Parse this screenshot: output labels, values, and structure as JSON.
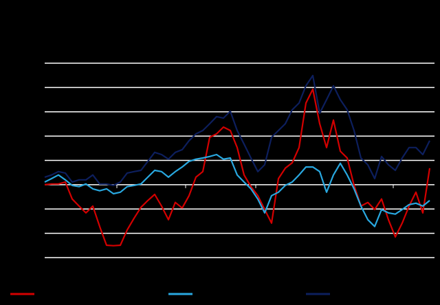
{
  "chart_data": {
    "type": "line",
    "x": [
      0,
      10,
      20,
      30,
      40,
      50,
      60,
      70,
      80,
      90,
      100,
      110,
      120,
      130,
      140,
      150,
      160,
      170,
      180,
      190,
      200,
      210,
      220,
      230,
      240,
      250,
      260,
      270,
      280,
      290,
      300,
      310,
      320,
      330,
      340,
      350,
      360,
      370,
      380,
      390,
      400,
      410,
      420,
      430,
      440,
      450,
      460,
      470,
      480,
      490,
      500,
      510,
      520,
      530,
      540,
      550,
      560
    ],
    "series": [
      {
        "color": "#d40000",
        "values": [
          0,
          0.03,
          0.03,
          0.11,
          -0.59,
          -0.88,
          -1.16,
          -0.88,
          -1.72,
          -2.49,
          -2.51,
          -2.49,
          -1.86,
          -1.38,
          -0.93,
          -0.65,
          -0.4,
          -0.88,
          -1.44,
          -0.73,
          -0.96,
          -0.45,
          0.31,
          0.54,
          1.95,
          2.09,
          2.37,
          2.23,
          1.53,
          0.4,
          -0.08,
          -0.45,
          -1.02,
          -1.58,
          0.25,
          0.68,
          0.9,
          1.53,
          3.36,
          3.93,
          2.51,
          1.53,
          2.66,
          1.38,
          1.1,
          -0.03,
          -0.88,
          -0.73,
          -1.02,
          -0.59,
          -1.44,
          -2.15,
          -1.58,
          -0.88,
          -0.31,
          -1.16,
          0.68
        ]
      },
      {
        "color": "#29a8e0",
        "values": [
          0.11,
          0.25,
          0.4,
          0.2,
          -0.03,
          -0.08,
          0.03,
          -0.17,
          -0.25,
          -0.17,
          -0.37,
          -0.31,
          -0.08,
          -0.03,
          0.03,
          0.31,
          0.59,
          0.54,
          0.31,
          0.54,
          0.73,
          0.96,
          1.05,
          1.1,
          1.16,
          1.24,
          1.05,
          1.1,
          0.4,
          0.11,
          -0.17,
          -0.59,
          -1.16,
          -0.45,
          -0.31,
          -0.03,
          0.11,
          0.4,
          0.73,
          0.73,
          0.54,
          -0.31,
          0.4,
          0.88,
          0.4,
          -0.17,
          -0.88,
          -1.44,
          -1.72,
          -1.02,
          -1.16,
          -1.21,
          -1.02,
          -0.82,
          -0.76,
          -0.88,
          -0.65
        ]
      },
      {
        "color": "#0d1f5e",
        "values": [
          0.31,
          0.4,
          0.54,
          0.48,
          0.11,
          0.2,
          0.2,
          0.4,
          0.03,
          0.03,
          -0.03,
          0.11,
          0.48,
          0.54,
          0.59,
          0.96,
          1.33,
          1.24,
          1.05,
          1.33,
          1.44,
          1.81,
          2.09,
          2.23,
          2.51,
          2.8,
          2.74,
          3.02,
          2.23,
          1.67,
          1.1,
          0.54,
          0.82,
          1.95,
          2.23,
          2.51,
          3.08,
          3.36,
          4.07,
          4.49,
          2.94,
          3.5,
          4.07,
          3.5,
          3.08,
          2.23,
          1.1,
          0.82,
          0.25,
          1.16,
          0.82,
          0.59,
          1.1,
          1.53,
          1.53,
          1.24,
          1.81
        ]
      }
    ],
    "xlim": [
      0,
      567
    ],
    "xticks": [
      105,
      205,
      307,
      407,
      507
    ],
    "ylim": [
      -3,
      5
    ],
    "yticks": [
      -3,
      -2,
      -1,
      0,
      1,
      2,
      3,
      4,
      5
    ],
    "grid": true
  }
}
